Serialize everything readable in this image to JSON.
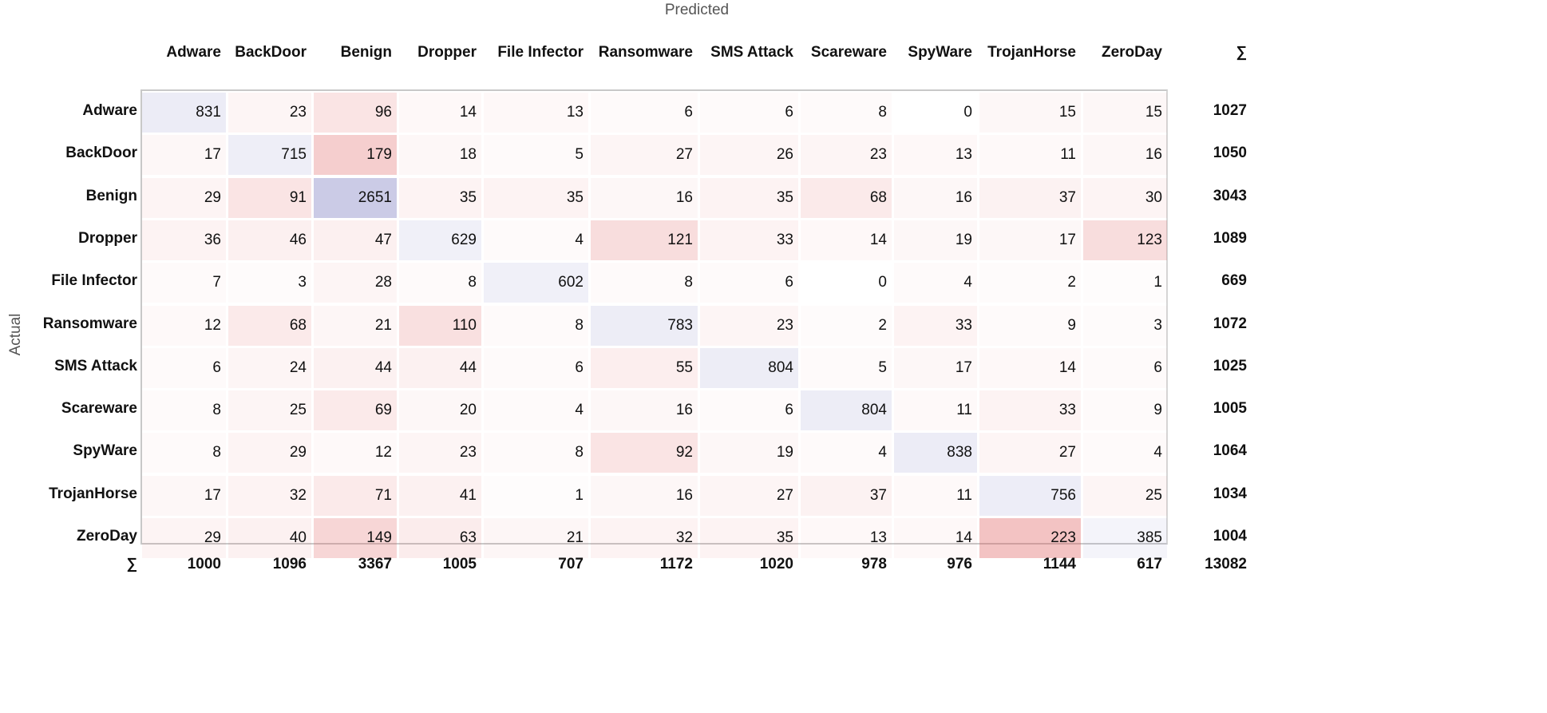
{
  "chart_data": {
    "type": "heatmap",
    "xlabel": "Predicted",
    "ylabel": "Actual",
    "classes": [
      "Adware",
      "BackDoor",
      "Benign",
      "Dropper",
      "File Infector",
      "Ransomware",
      "SMS Attack",
      "Scareware",
      "SpyWare",
      "TrojanHorse",
      "ZeroDay"
    ],
    "matrix": [
      [
        831,
        23,
        96,
        14,
        13,
        6,
        6,
        8,
        0,
        15,
        15
      ],
      [
        17,
        715,
        179,
        18,
        5,
        27,
        26,
        23,
        13,
        11,
        16
      ],
      [
        29,
        91,
        2651,
        35,
        35,
        16,
        35,
        68,
        16,
        37,
        30
      ],
      [
        36,
        46,
        47,
        629,
        4,
        121,
        33,
        14,
        19,
        17,
        123
      ],
      [
        7,
        3,
        28,
        8,
        602,
        8,
        6,
        0,
        4,
        2,
        1
      ],
      [
        12,
        68,
        21,
        110,
        8,
        783,
        23,
        2,
        33,
        9,
        3
      ],
      [
        6,
        24,
        44,
        44,
        6,
        55,
        804,
        5,
        17,
        14,
        6
      ],
      [
        8,
        25,
        69,
        20,
        4,
        16,
        6,
        804,
        11,
        33,
        9
      ],
      [
        8,
        29,
        12,
        23,
        8,
        92,
        19,
        4,
        838,
        27,
        4
      ],
      [
        17,
        32,
        71,
        41,
        1,
        16,
        27,
        37,
        11,
        756,
        25
      ],
      [
        29,
        40,
        149,
        63,
        21,
        32,
        35,
        13,
        14,
        223,
        385
      ]
    ],
    "sum_symbol": "∑",
    "row_sums": [
      1027,
      1050,
      3043,
      1089,
      669,
      1072,
      1025,
      1005,
      1064,
      1034,
      1004
    ],
    "col_sums": [
      1000,
      1096,
      3367,
      1005,
      707,
      1172,
      1020,
      978,
      976,
      1144,
      617
    ],
    "total": 13082,
    "colors": {
      "correct": "#8c8cc8",
      "error": "#dc5050"
    }
  }
}
